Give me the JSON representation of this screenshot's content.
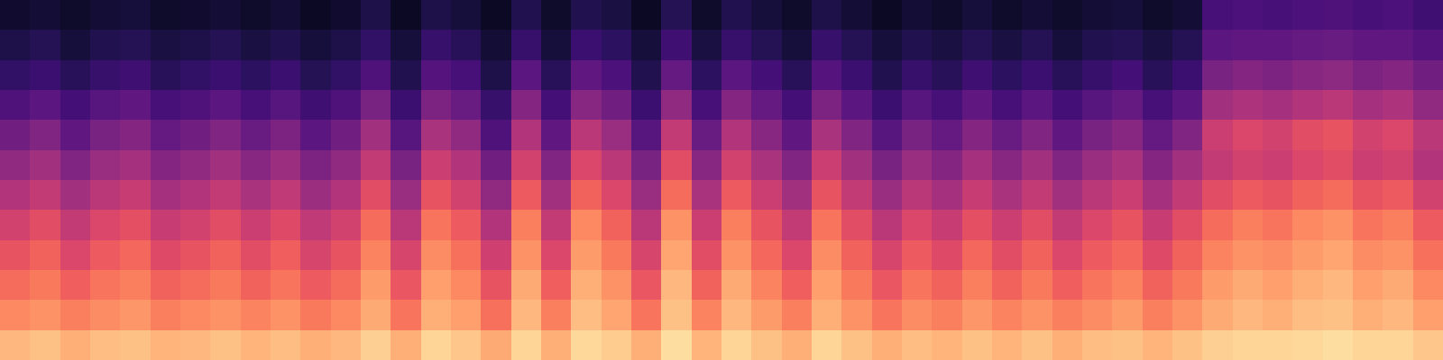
{
  "chart_data": {
    "type": "heatmap",
    "tick_labels": false,
    "values": [
      [
        6,
        7,
        5,
        7,
        8,
        5,
        6,
        7,
        5,
        7,
        4,
        6,
        10,
        4,
        10,
        8,
        4,
        11,
        5,
        11,
        9,
        4,
        12,
        5,
        11,
        8,
        5,
        10,
        7,
        4,
        7,
        5,
        8,
        5,
        7,
        5,
        7,
        8,
        5,
        7,
        20,
        21,
        20,
        21,
        22,
        20,
        21,
        18
      ],
      [
        10,
        12,
        8,
        11,
        12,
        9,
        10,
        12,
        9,
        11,
        8,
        10,
        15,
        8,
        16,
        13,
        7,
        16,
        8,
        17,
        14,
        8,
        18,
        9,
        16,
        12,
        8,
        16,
        12,
        8,
        11,
        9,
        12,
        9,
        12,
        8,
        11,
        12,
        9,
        12,
        25,
        26,
        26,
        27,
        28,
        26,
        26,
        23
      ],
      [
        15,
        17,
        13,
        16,
        18,
        13,
        15,
        17,
        14,
        17,
        12,
        15,
        22,
        11,
        23,
        20,
        10,
        25,
        13,
        26,
        21,
        11,
        27,
        14,
        25,
        19,
        13,
        23,
        17,
        11,
        16,
        13,
        18,
        14,
        17,
        13,
        16,
        19,
        13,
        17,
        32,
        35,
        33,
        36,
        37,
        33,
        35,
        30
      ],
      [
        22,
        25,
        19,
        24,
        26,
        20,
        22,
        25,
        20,
        24,
        18,
        22,
        32,
        17,
        33,
        28,
        16,
        35,
        19,
        36,
        30,
        17,
        38,
        20,
        35,
        27,
        19,
        33,
        25,
        17,
        24,
        20,
        26,
        20,
        25,
        19,
        24,
        27,
        20,
        25,
        42,
        45,
        43,
        46,
        48,
        43,
        45,
        38
      ],
      [
        30,
        34,
        26,
        32,
        35,
        27,
        30,
        34,
        28,
        33,
        25,
        30,
        42,
        24,
        44,
        38,
        22,
        46,
        26,
        48,
        40,
        24,
        50,
        28,
        46,
        36,
        26,
        44,
        34,
        24,
        32,
        27,
        35,
        28,
        34,
        26,
        32,
        36,
        27,
        34,
        52,
        56,
        54,
        58,
        60,
        54,
        56,
        48
      ],
      [
        38,
        42,
        34,
        40,
        43,
        35,
        38,
        42,
        36,
        41,
        33,
        38,
        50,
        32,
        52,
        46,
        30,
        54,
        34,
        56,
        48,
        32,
        58,
        36,
        54,
        44,
        34,
        52,
        42,
        32,
        40,
        35,
        43,
        36,
        42,
        34,
        40,
        44,
        35,
        42,
        50,
        54,
        52,
        56,
        58,
        52,
        54,
        46
      ],
      [
        46,
        50,
        42,
        48,
        51,
        43,
        46,
        50,
        44,
        49,
        41,
        46,
        58,
        40,
        60,
        54,
        38,
        62,
        42,
        64,
        56,
        40,
        66,
        44,
        62,
        52,
        42,
        60,
        50,
        40,
        48,
        43,
        51,
        44,
        50,
        42,
        48,
        52,
        43,
        50,
        58,
        62,
        60,
        64,
        66,
        60,
        62,
        54
      ],
      [
        54,
        58,
        50,
        56,
        59,
        51,
        54,
        58,
        52,
        57,
        49,
        54,
        66,
        48,
        68,
        62,
        46,
        70,
        50,
        72,
        64,
        48,
        74,
        52,
        70,
        60,
        50,
        68,
        58,
        48,
        56,
        51,
        59,
        52,
        58,
        50,
        56,
        60,
        51,
        58,
        66,
        70,
        68,
        72,
        74,
        68,
        70,
        62
      ],
      [
        60,
        64,
        56,
        62,
        65,
        57,
        60,
        64,
        58,
        63,
        55,
        60,
        71,
        55,
        73,
        67,
        53,
        74,
        56,
        76,
        69,
        55,
        78,
        58,
        74,
        65,
        56,
        73,
        64,
        55,
        62,
        57,
        65,
        58,
        64,
        56,
        62,
        65,
        57,
        64,
        71,
        74,
        73,
        76,
        78,
        73,
        74,
        67
      ],
      [
        66,
        69,
        63,
        68,
        70,
        64,
        66,
        69,
        64,
        68,
        62,
        66,
        76,
        61,
        77,
        72,
        60,
        79,
        63,
        80,
        74,
        61,
        82,
        64,
        79,
        71,
        63,
        77,
        69,
        61,
        68,
        64,
        70,
        64,
        69,
        63,
        68,
        71,
        64,
        69,
        76,
        79,
        77,
        80,
        82,
        77,
        79,
        72
      ],
      [
        72,
        74,
        70,
        73,
        75,
        70,
        72,
        74,
        71,
        74,
        69,
        72,
        79,
        68,
        80,
        77,
        67,
        82,
        70,
        83,
        78,
        68,
        84,
        71,
        82,
        76,
        70,
        80,
        74,
        68,
        73,
        70,
        75,
        71,
        74,
        70,
        73,
        76,
        70,
        74,
        79,
        82,
        80,
        83,
        84,
        80,
        82,
        77
      ],
      [
        82,
        84,
        80,
        83,
        84,
        81,
        82,
        84,
        81,
        83,
        80,
        82,
        87,
        80,
        88,
        85,
        79,
        88,
        80,
        89,
        86,
        80,
        90,
        81,
        88,
        84,
        80,
        88,
        84,
        80,
        83,
        81,
        84,
        81,
        84,
        80,
        83,
        84,
        81,
        84,
        87,
        88,
        88,
        89,
        90,
        88,
        88,
        85
      ]
    ]
  }
}
